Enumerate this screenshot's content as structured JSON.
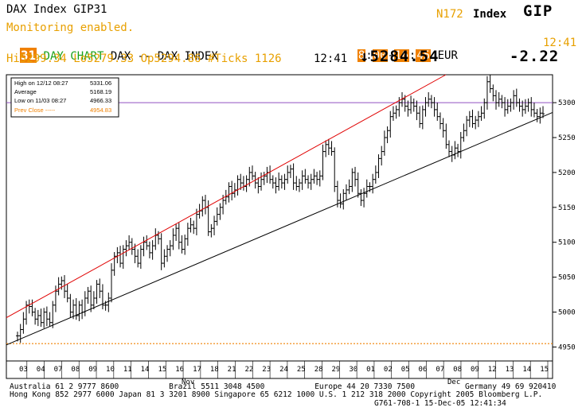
{
  "header": {
    "left_title": "DAX Index GIP31",
    "status": "Monitoring enabled.",
    "ticker_code": "N172",
    "index_label": "Index",
    "function": "GIP",
    "days": "31",
    "chart_label": "-DAY CHART",
    "symbol_desc": "DAX -- DAX INDEX",
    "session_start": "8",
    "session_start_min": "00",
    "session_end": "16",
    "session_end_min": "45",
    "currency": "EUR",
    "clock": "12:41",
    "stats_line": "Hi5299.34 Lo5279.33 Op5294.86 #Ticks 1126",
    "last_time": "12:41",
    "last_price": "↓5284.54",
    "change": "-2.22"
  },
  "legend": {
    "rows": [
      {
        "label": "High on 12/12 08:27",
        "value": "5331.06"
      },
      {
        "label": "Average",
        "value": "5168.19"
      },
      {
        "label": "Low on 11/03 08:27",
        "value": "4966.33"
      },
      {
        "label": "Prev Close -----",
        "value": "4954.83"
      }
    ]
  },
  "footer": {
    "line1": "Australia 61 2 9777 8600           Brazil 5511 3048 4500           Europe 44 20 7330 7500           Germany 49 69 920410",
    "line2": "Hong Kong 852 2977 6000 Japan 81 3 3201 8900 Singapore 65 6212 1000 U.S. 1 212 318 2000 Copyright 2005 Bloomberg L.P.",
    "line3": "G761-708-1 15-Dec-05 12:41:34"
  },
  "chart_data": {
    "type": "candlestick",
    "ylim": [
      4930,
      5340
    ],
    "y_ticks": [
      4950,
      5000,
      5050,
      5100,
      5150,
      5200,
      5250,
      5300
    ],
    "date_labels": [
      "03",
      "04",
      "07",
      "08",
      "09",
      "10",
      "11",
      "14",
      "15",
      "16",
      "17",
      "18",
      "21",
      "22",
      "23",
      "24",
      "25",
      "28",
      "29",
      "30",
      "01",
      "02",
      "05",
      "06",
      "07",
      "08",
      "09",
      "12",
      "13",
      "14",
      "15"
    ],
    "month_labels": [
      "Nov",
      "Dec"
    ],
    "prev_close": 4954.83,
    "high_ref": 5300,
    "colors": {
      "upper_channel": "#e00000",
      "lower_channel": "#000000",
      "prev_close": "#f08000",
      "high_ref": "#9050c0",
      "bars": "#000000"
    },
    "upper_channel": {
      "start": 4992,
      "end": 5340
    },
    "lower_channel": {
      "start": 4953,
      "end": 5286
    },
    "series": [
      {
        "values": [
          4966,
          4975,
          4990,
          5010,
          5008,
          5000,
          4990,
          4995,
          4985,
          5000,
          4990,
          4985,
          5010,
          5030,
          5040,
          5045,
          5030,
          5020,
          5000,
          5010,
          4995,
          5010,
          5000,
          5020,
          5030,
          5010,
          5020,
          5040,
          5030,
          5010
        ]
      },
      {
        "values": [
          5010,
          5020,
          5060,
          5080,
          5085,
          5070,
          5090,
          5095,
          5100,
          5090,
          5080,
          5070,
          5090,
          5100,
          5095,
          5085,
          5095,
          5110,
          5105,
          5070,
          5080,
          5090,
          5095,
          5110,
          5120,
          5100,
          5090,
          5105,
          5120,
          5125
        ]
      },
      {
        "values": [
          5120,
          5140,
          5145,
          5160,
          5150,
          5115,
          5120,
          5130,
          5140,
          5150,
          5160,
          5165,
          5180,
          5170,
          5175,
          5190,
          5185,
          5180,
          5190,
          5200,
          5195,
          5185,
          5180,
          5190,
          5195,
          5200,
          5190,
          5185,
          5180,
          5190
        ]
      },
      {
        "values": [
          5185,
          5190,
          5200,
          5205,
          5185,
          5180,
          5185,
          5195,
          5190,
          5185,
          5190,
          5195,
          5190,
          5195,
          5230,
          5240,
          5235,
          5230,
          5180,
          5160,
          5155,
          5170,
          5175,
          5180,
          5200,
          5190,
          5170,
          5160,
          5170,
          5180
        ]
      },
      {
        "values": [
          5180,
          5190,
          5200,
          5220,
          5230,
          5250,
          5260,
          5280,
          5285,
          5290,
          5300,
          5305,
          5295,
          5290,
          5300,
          5295,
          5285,
          5270,
          5290,
          5300,
          5305,
          5300,
          5290,
          5280,
          5270,
          5260,
          5240,
          5230,
          5225,
          5235
        ]
      },
      {
        "values": [
          5230,
          5250,
          5260,
          5275,
          5280,
          5270,
          5275,
          5280,
          5285,
          5300,
          5330,
          5320,
          5310,
          5300,
          5305,
          5300,
          5290,
          5295,
          5300,
          5310,
          5300,
          5295,
          5290,
          5295,
          5300,
          5290,
          5285,
          5280,
          5285,
          5284
        ]
      }
    ]
  }
}
